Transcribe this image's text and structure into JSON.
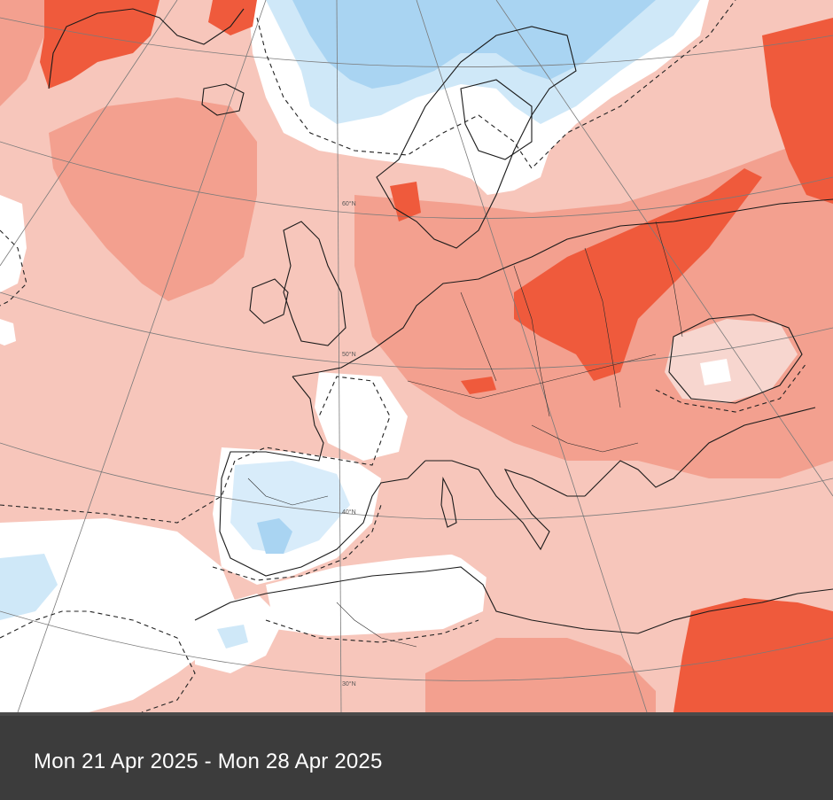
{
  "map": {
    "projection_labels": [
      "60°N",
      "50°N",
      "40°N",
      "30°N"
    ],
    "colors": {
      "ocean_base": "#f7c6bb",
      "anomaly_slight_warm": "#f7c6bb",
      "anomaly_warm": "#f3a08f",
      "anomaly_strong_warm": "#ef5a3c",
      "anomaly_neutral": "#ffffff",
      "anomaly_slight_cool": "#d8ecfa",
      "anomaly_cool": "#a9d4f2",
      "graticule": "#7a7a7a",
      "coastline": "#1a1a1a"
    },
    "graticule_labels": {
      "lat_60": "60°N",
      "lat_50": "50°N",
      "lat_40": "40°N",
      "lat_30": "30°N"
    }
  },
  "caption": {
    "date_range": "Mon 21 Apr 2025 - Mon 28 Apr 2025"
  }
}
